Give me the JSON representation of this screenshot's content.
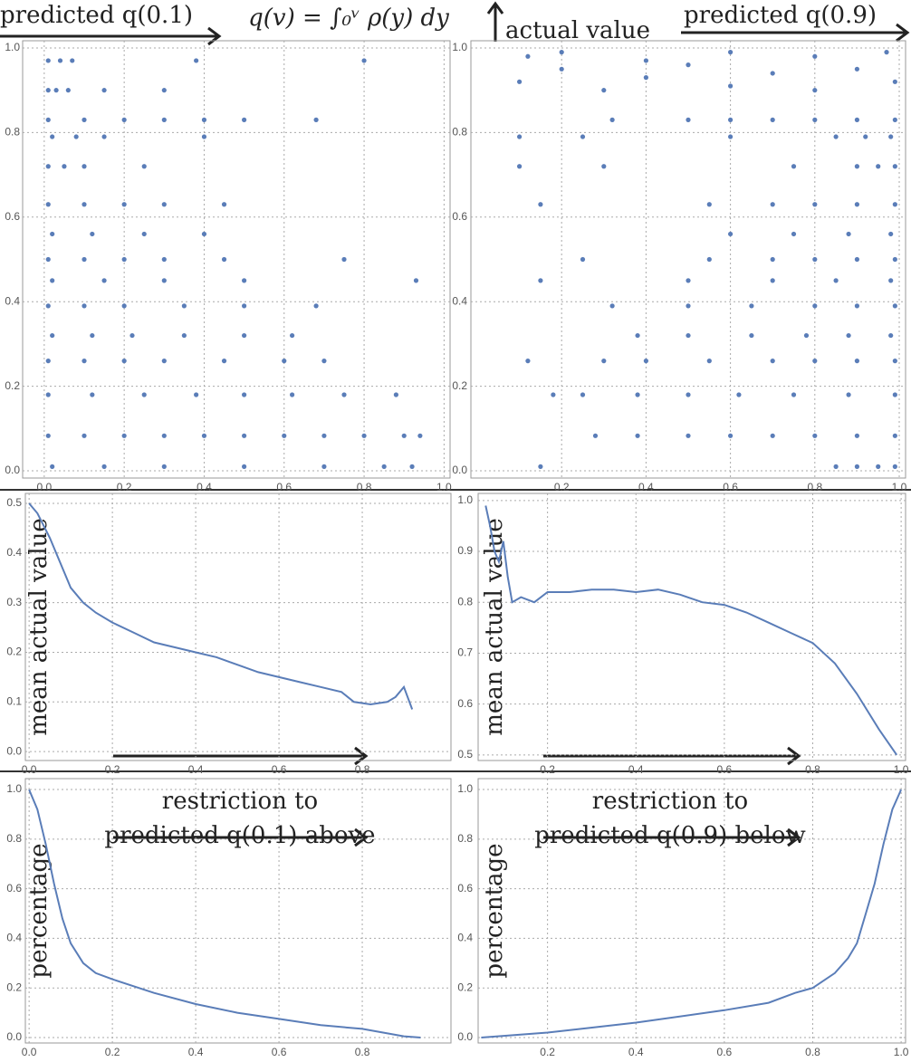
{
  "header": {
    "left_label": "predicted q(0.1)",
    "formula": "q(v) = ∫₀ᵛ ρ(y) dy",
    "center_label": "actual value",
    "right_label": "predicted q(0.9)"
  },
  "chart_data": [
    {
      "type": "scatter",
      "color": "#5a7db8",
      "grid": true,
      "xlim": [
        -0.054,
        1.015
      ],
      "ylim": [
        -0.017,
        1.017
      ],
      "xticks": [
        {
          "value": 0,
          "label": "0.0"
        },
        0.2,
        0.4,
        0.6,
        0.8,
        {
          "value": 1,
          "label": "1.0"
        }
      ],
      "yticks": [
        {
          "value": 0,
          "label": "0.0"
        },
        0.2,
        0.4,
        0.6,
        0.8,
        {
          "value": 1,
          "label": "1.0"
        }
      ],
      "x": [
        0.01,
        0.1,
        0.2,
        0.3,
        0.4,
        0.5,
        0.6,
        0.7,
        0.8,
        0.9,
        0.94,
        0.02,
        0.15,
        0.3,
        0.5,
        0.7,
        0.85,
        0.92,
        0.01,
        0.12,
        0.25,
        0.38,
        0.5,
        0.62,
        0.75,
        0.88,
        0.01,
        0.1,
        0.2,
        0.3,
        0.45,
        0.6,
        0.7,
        0.02,
        0.12,
        0.22,
        0.35,
        0.5,
        0.62,
        0.01,
        0.1,
        0.2,
        0.35,
        0.5,
        0.68,
        0.02,
        0.15,
        0.3,
        0.5,
        0.93,
        0.01,
        0.1,
        0.2,
        0.3,
        0.45,
        0.75,
        0.02,
        0.12,
        0.25,
        0.4,
        0.01,
        0.1,
        0.2,
        0.3,
        0.45,
        0.01,
        0.05,
        0.1,
        0.25,
        0.02,
        0.08,
        0.15,
        0.4,
        0.01,
        0.1,
        0.2,
        0.3,
        0.4,
        0.5,
        0.68,
        0.01,
        0.03,
        0.06,
        0.15,
        0.3,
        0.01,
        0.04,
        0.07,
        0.38,
        0.8
      ],
      "values": [
        0.083,
        0.083,
        0.083,
        0.083,
        0.083,
        0.083,
        0.083,
        0.083,
        0.083,
        0.083,
        0.083,
        0.01,
        0.01,
        0.01,
        0.01,
        0.01,
        0.01,
        0.01,
        0.18,
        0.18,
        0.18,
        0.18,
        0.18,
        0.18,
        0.18,
        0.18,
        0.26,
        0.26,
        0.26,
        0.26,
        0.26,
        0.26,
        0.26,
        0.32,
        0.32,
        0.32,
        0.32,
        0.32,
        0.32,
        0.39,
        0.39,
        0.39,
        0.39,
        0.39,
        0.39,
        0.45,
        0.45,
        0.45,
        0.45,
        0.45,
        0.5,
        0.5,
        0.5,
        0.5,
        0.5,
        0.5,
        0.56,
        0.56,
        0.56,
        0.56,
        0.63,
        0.63,
        0.63,
        0.63,
        0.63,
        0.72,
        0.72,
        0.72,
        0.72,
        0.79,
        0.79,
        0.79,
        0.79,
        0.83,
        0.83,
        0.83,
        0.83,
        0.83,
        0.83,
        0.83,
        0.9,
        0.9,
        0.9,
        0.9,
        0.9,
        0.97,
        0.97,
        0.97,
        0.97,
        0.97
      ]
    },
    {
      "type": "scatter",
      "color": "#5a7db8",
      "grid": true,
      "xlim": [
        -0.015,
        1.015
      ],
      "ylim": [
        -0.017,
        1.017
      ],
      "xticks": [
        0.2,
        0.4,
        0.6,
        0.8,
        {
          "value": 1,
          "label": "1.0"
        }
      ],
      "yticks": [
        {
          "value": 0,
          "label": "0.0"
        },
        0.2,
        0.4,
        0.6,
        0.8,
        {
          "value": 1,
          "label": "1.0"
        }
      ],
      "x": [
        0.28,
        0.38,
        0.5,
        0.6,
        0.7,
        0.8,
        0.9,
        0.99,
        0.15,
        0.85,
        0.9,
        0.95,
        0.99,
        0.18,
        0.25,
        0.38,
        0.5,
        0.62,
        0.75,
        0.88,
        0.99,
        0.12,
        0.3,
        0.4,
        0.55,
        0.7,
        0.8,
        0.9,
        0.99,
        0.38,
        0.5,
        0.65,
        0.78,
        0.88,
        0.98,
        0.32,
        0.5,
        0.65,
        0.8,
        0.9,
        0.99,
        0.15,
        0.5,
        0.7,
        0.85,
        0.98,
        0.25,
        0.55,
        0.7,
        0.8,
        0.9,
        0.99,
        0.6,
        0.75,
        0.88,
        0.98,
        0.15,
        0.55,
        0.7,
        0.8,
        0.9,
        0.99,
        0.1,
        0.3,
        0.75,
        0.9,
        0.95,
        0.99,
        0.1,
        0.25,
        0.6,
        0.85,
        0.92,
        0.98,
        0.32,
        0.5,
        0.6,
        0.7,
        0.8,
        0.9,
        0.99,
        0.1,
        0.2,
        0.3,
        0.4,
        0.5,
        0.6,
        0.7,
        0.8,
        0.9,
        0.99,
        0.12,
        0.2,
        0.4,
        0.6,
        0.8,
        0.97
      ],
      "values": [
        0.083,
        0.083,
        0.083,
        0.083,
        0.083,
        0.083,
        0.083,
        0.083,
        0.01,
        0.01,
        0.01,
        0.01,
        0.01,
        0.18,
        0.18,
        0.18,
        0.18,
        0.18,
        0.18,
        0.18,
        0.18,
        0.26,
        0.26,
        0.26,
        0.26,
        0.26,
        0.26,
        0.26,
        0.26,
        0.32,
        0.32,
        0.32,
        0.32,
        0.32,
        0.32,
        0.39,
        0.39,
        0.39,
        0.39,
        0.39,
        0.39,
        0.45,
        0.45,
        0.45,
        0.45,
        0.45,
        0.5,
        0.5,
        0.5,
        0.5,
        0.5,
        0.5,
        0.56,
        0.56,
        0.56,
        0.56,
        0.63,
        0.63,
        0.63,
        0.63,
        0.63,
        0.63,
        0.72,
        0.72,
        0.72,
        0.72,
        0.72,
        0.72,
        0.79,
        0.79,
        0.79,
        0.79,
        0.79,
        0.79,
        0.83,
        0.83,
        0.83,
        0.83,
        0.83,
        0.83,
        0.83,
        0.92,
        0.95,
        0.9,
        0.93,
        0.96,
        0.91,
        0.94,
        0.9,
        0.95,
        0.92,
        0.98,
        0.99,
        0.97,
        0.99,
        0.98,
        0.99
      ]
    },
    {
      "type": "line",
      "color": "#5a7db8",
      "grid": true,
      "ylabel": "mean actual value",
      "xlim": [
        -0.009,
        1.013
      ],
      "ylim": [
        -0.018,
        0.52
      ],
      "xticks": [
        {
          "value": 0,
          "label": "0.0"
        },
        0.2,
        0.4,
        0.6,
        0.8
      ],
      "yticks": [
        {
          "value": 0,
          "label": "0.0"
        },
        0.1,
        0.2,
        0.3,
        0.4,
        0.5
      ],
      "x": [
        0,
        0.02,
        0.05,
        0.08,
        0.1,
        0.13,
        0.16,
        0.2,
        0.25,
        0.3,
        0.35,
        0.4,
        0.45,
        0.5,
        0.55,
        0.6,
        0.65,
        0.7,
        0.75,
        0.78,
        0.82,
        0.86,
        0.88,
        0.9,
        0.92
      ],
      "values": [
        0.5,
        0.48,
        0.43,
        0.37,
        0.33,
        0.3,
        0.28,
        0.26,
        0.24,
        0.22,
        0.21,
        0.2,
        0.19,
        0.175,
        0.16,
        0.15,
        0.14,
        0.13,
        0.12,
        0.1,
        0.095,
        0.1,
        0.11,
        0.13,
        0.085
      ]
    },
    {
      "type": "line",
      "color": "#5a7db8",
      "grid": true,
      "ylabel": "mean actual value",
      "xlim": [
        0.043,
        1.01
      ],
      "ylim": [
        0.489,
        1.014
      ],
      "xticks": [
        0.2,
        0.4,
        0.6,
        0.8,
        {
          "value": 1,
          "label": "1.0"
        }
      ],
      "yticks": [
        0.5,
        0.6,
        0.7,
        0.8,
        0.9,
        {
          "value": 1,
          "label": "1.0"
        }
      ],
      "x": [
        0.06,
        0.07,
        0.08,
        0.09,
        0.1,
        0.11,
        0.12,
        0.14,
        0.17,
        0.2,
        0.25,
        0.3,
        0.35,
        0.4,
        0.45,
        0.5,
        0.55,
        0.6,
        0.65,
        0.7,
        0.75,
        0.8,
        0.85,
        0.9,
        0.95,
        0.99
      ],
      "values": [
        0.99,
        0.95,
        0.9,
        0.88,
        0.92,
        0.85,
        0.8,
        0.81,
        0.8,
        0.82,
        0.82,
        0.825,
        0.825,
        0.82,
        0.825,
        0.815,
        0.8,
        0.795,
        0.78,
        0.76,
        0.74,
        0.72,
        0.68,
        0.62,
        0.55,
        0.5
      ]
    },
    {
      "type": "line",
      "color": "#5a7db8",
      "grid": true,
      "ylabel": "percentage",
      "annotation": [
        "restriction to",
        "predicted q(0.1) above"
      ],
      "xlim": [
        -0.009,
        1.013
      ],
      "ylim": [
        -0.022,
        1.044
      ],
      "xticks": [
        {
          "value": 0,
          "label": "0.0"
        },
        0.2,
        0.4,
        0.6,
        0.8
      ],
      "yticks": [
        {
          "value": 0,
          "label": "0.0"
        },
        0.2,
        0.4,
        0.6,
        0.8,
        {
          "value": 1,
          "label": "1.0"
        }
      ],
      "x": [
        0,
        0.02,
        0.04,
        0.06,
        0.08,
        0.1,
        0.13,
        0.16,
        0.2,
        0.3,
        0.4,
        0.5,
        0.6,
        0.7,
        0.8,
        0.85,
        0.9,
        0.94
      ],
      "values": [
        1,
        0.92,
        0.78,
        0.62,
        0.48,
        0.38,
        0.3,
        0.26,
        0.235,
        0.18,
        0.135,
        0.1,
        0.075,
        0.05,
        0.035,
        0.02,
        0.005,
        0
      ]
    },
    {
      "type": "line",
      "color": "#5a7db8",
      "grid": true,
      "ylabel": "percentage",
      "annotation": [
        "restriction to",
        "predicted q(0.9) below"
      ],
      "xlim": [
        0.043,
        1.01
      ],
      "ylim": [
        -0.022,
        1.044
      ],
      "xticks": [
        0.2,
        0.4,
        0.6,
        0.8,
        {
          "value": 1,
          "label": "1.0"
        }
      ],
      "yticks": [
        {
          "value": 0,
          "label": "0.0"
        },
        0.2,
        0.4,
        0.6,
        0.8,
        {
          "value": 1,
          "label": "1.0"
        }
      ],
      "x": [
        0.05,
        0.2,
        0.4,
        0.6,
        0.7,
        0.76,
        0.8,
        0.85,
        0.88,
        0.9,
        0.92,
        0.94,
        0.96,
        0.98,
        1.0
      ],
      "values": [
        0,
        0.02,
        0.06,
        0.11,
        0.14,
        0.18,
        0.2,
        0.26,
        0.32,
        0.38,
        0.5,
        0.62,
        0.78,
        0.92,
        1
      ]
    }
  ]
}
